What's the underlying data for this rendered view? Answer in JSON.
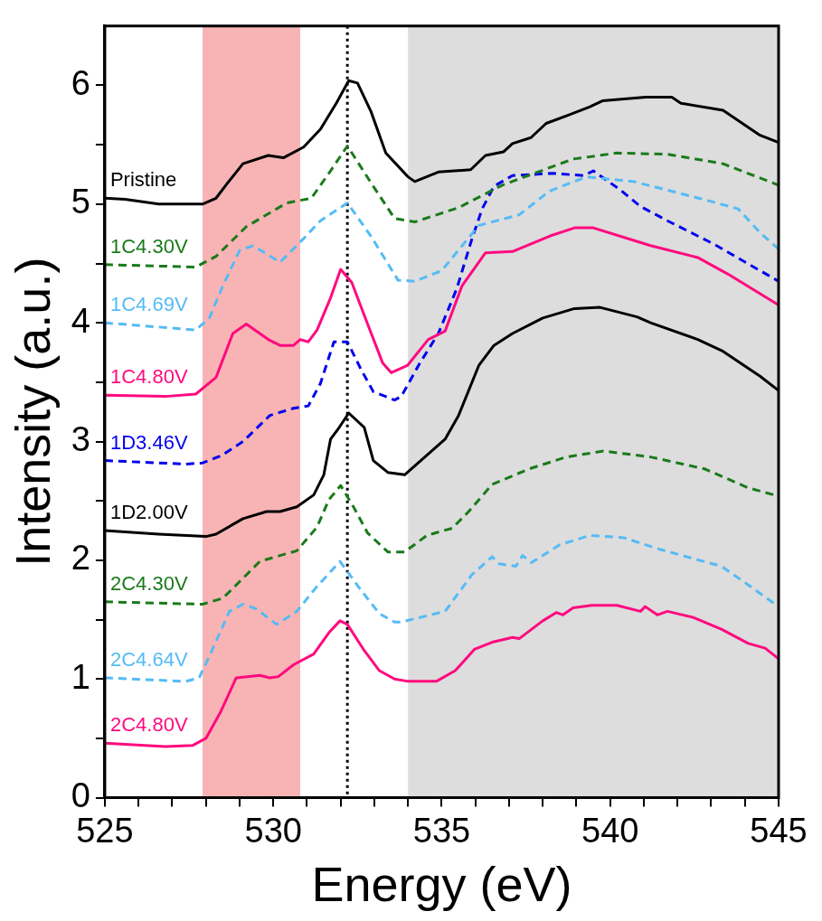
{
  "chart_data": {
    "type": "line",
    "xlabel": "Energy (eV)",
    "ylabel": "Intensity (a.u.)",
    "xlim": [
      525,
      545
    ],
    "ylim": [
      0,
      6.5
    ],
    "xticks": [
      525,
      {
        "value": 526,
        "label": null
      },
      {
        "value": 527,
        "label": null
      },
      {
        "value": 528,
        "label": null
      },
      {
        "value": 529,
        "label": null
      },
      530,
      {
        "value": 531,
        "label": null
      },
      {
        "value": 532,
        "label": null
      },
      {
        "value": 533,
        "label": null
      },
      {
        "value": 534,
        "label": null
      },
      535,
      {
        "value": 536,
        "label": null
      },
      {
        "value": 537,
        "label": null
      },
      {
        "value": 538,
        "label": null
      },
      {
        "value": 539,
        "label": null
      },
      540,
      {
        "value": 541,
        "label": null
      },
      {
        "value": 542,
        "label": null
      },
      {
        "value": 543,
        "label": null
      },
      {
        "value": 544,
        "label": null
      },
      545
    ],
    "yticks": [
      0,
      {
        "value": 0.5,
        "label": null
      },
      1,
      {
        "value": 1.5,
        "label": null
      },
      2,
      {
        "value": 2.5,
        "label": null
      },
      3,
      {
        "value": 3.5,
        "label": null
      },
      4,
      {
        "value": 4.5,
        "label": null
      },
      5,
      {
        "value": 5.5,
        "label": null
      },
      6
    ],
    "grid": false,
    "legend": false,
    "marker": "none",
    "bands": [
      {
        "axis": "x",
        "from": 527.9,
        "to": 530.8,
        "color": "#f8b4b4"
      },
      {
        "axis": "x",
        "from": 534.0,
        "to": 545,
        "color": "#dddddd"
      }
    ],
    "ref_lines": [
      {
        "axis": "x",
        "value": 532.2,
        "color": "#000000",
        "line_style": "dotted"
      }
    ],
    "series": [
      {
        "name": "Pristine",
        "color": "#000000",
        "line_style": "solid",
        "x": [
          525,
          525.6,
          526.6,
          527.9,
          528.3,
          528.65,
          529.1,
          529.85,
          530.3,
          530.9,
          531.4,
          531.87,
          532.24,
          532.5,
          532.9,
          533.34,
          534.0,
          534.2,
          534.9,
          535.86,
          536.3,
          536.83,
          537.1,
          537.65,
          538.1,
          538.76,
          539.4,
          539.77,
          541.05,
          541.83,
          542.1,
          543.35,
          544.45,
          545
        ],
        "values": [
          5.05,
          5.04,
          5.0,
          5.0,
          5.05,
          5.18,
          5.34,
          5.41,
          5.39,
          5.48,
          5.63,
          5.85,
          6.04,
          6.02,
          5.78,
          5.43,
          5.23,
          5.19,
          5.27,
          5.29,
          5.41,
          5.44,
          5.51,
          5.56,
          5.68,
          5.75,
          5.82,
          5.87,
          5.9,
          5.9,
          5.85,
          5.79,
          5.58,
          5.52
        ]
      },
      {
        "name": "1C4.30V",
        "color": "#1a7a1a",
        "line_style": "dashed",
        "x": [
          525,
          527.7,
          528.3,
          529.2,
          530.4,
          531.13,
          531.7,
          532.2,
          532.9,
          533.6,
          534.2,
          535.5,
          536.8,
          538.9,
          540.2,
          541.7,
          543.35,
          545
        ],
        "values": [
          4.49,
          4.47,
          4.56,
          4.81,
          5.01,
          5.05,
          5.28,
          5.49,
          5.18,
          4.88,
          4.85,
          4.97,
          5.16,
          5.38,
          5.43,
          5.42,
          5.34,
          5.16
        ]
      },
      {
        "name": "1C4.69V",
        "color": "#55bbf5",
        "line_style": "dashed",
        "x": [
          525,
          527.7,
          528.1,
          528.5,
          529.0,
          529.4,
          530.2,
          530.9,
          531.4,
          532.2,
          532.9,
          533.7,
          534.2,
          535.0,
          536.1,
          537.3,
          538.2,
          539.3,
          540.7,
          542.9,
          543.8,
          544.45,
          545
        ],
        "values": [
          4.0,
          3.94,
          4.04,
          4.31,
          4.61,
          4.65,
          4.51,
          4.71,
          4.86,
          5.01,
          4.73,
          4.36,
          4.35,
          4.44,
          4.82,
          4.91,
          5.11,
          5.23,
          5.19,
          5.03,
          4.96,
          4.76,
          4.62
        ]
      },
      {
        "name": "1C4.80V",
        "color": "#ff0a7f",
        "line_style": "solid",
        "x": [
          525,
          526.8,
          527.7,
          528.3,
          528.8,
          529.2,
          529.85,
          530.2,
          530.6,
          530.8,
          531.04,
          531.3,
          531.7,
          532.0,
          532.33,
          532.8,
          533.25,
          533.5,
          533.98,
          534.6,
          535.1,
          535.6,
          536.3,
          537.1,
          538.2,
          538.94,
          539.5,
          541.2,
          542.6,
          543.5,
          545
        ],
        "values": [
          3.39,
          3.38,
          3.4,
          3.54,
          3.91,
          3.99,
          3.86,
          3.81,
          3.81,
          3.86,
          3.84,
          3.94,
          4.21,
          4.45,
          4.34,
          3.99,
          3.66,
          3.58,
          3.64,
          3.86,
          3.93,
          4.31,
          4.59,
          4.6,
          4.73,
          4.8,
          4.8,
          4.65,
          4.55,
          4.41,
          4.15
        ]
      },
      {
        "name": "1D3.46V",
        "color": "#0000ee",
        "line_style": "dashed",
        "x": [
          525,
          527.4,
          527.9,
          528.45,
          529.1,
          529.9,
          530.6,
          531.04,
          531.4,
          531.8,
          532.2,
          532.6,
          532.97,
          533.6,
          533.8,
          534.35,
          534.9,
          535.45,
          535.9,
          536.2,
          536.55,
          537.1,
          538.3,
          539.2,
          539.5,
          540.3,
          540.9,
          541.7,
          543.1,
          545
        ],
        "values": [
          2.84,
          2.81,
          2.82,
          2.88,
          3.0,
          3.22,
          3.28,
          3.3,
          3.49,
          3.84,
          3.84,
          3.61,
          3.42,
          3.35,
          3.38,
          3.66,
          3.91,
          4.29,
          4.71,
          4.96,
          5.15,
          5.24,
          5.26,
          5.24,
          5.28,
          5.12,
          4.98,
          4.86,
          4.66,
          4.35
        ]
      },
      {
        "name": "1D2.00V",
        "color": "#000000",
        "line_style": "solid",
        "x": [
          525,
          526.6,
          528.0,
          528.3,
          529.1,
          529.8,
          530.2,
          530.7,
          531.2,
          531.5,
          531.7,
          531.96,
          532.24,
          532.7,
          532.97,
          533.4,
          533.9,
          534.5,
          535.1,
          535.5,
          536.1,
          536.55,
          537.1,
          538.0,
          538.94,
          539.7,
          540.8,
          541.2,
          542.6,
          543.35,
          544.45,
          545
        ],
        "values": [
          2.25,
          2.22,
          2.2,
          2.22,
          2.35,
          2.41,
          2.41,
          2.45,
          2.55,
          2.72,
          3.02,
          3.12,
          3.24,
          3.12,
          2.84,
          2.74,
          2.72,
          2.87,
          3.02,
          3.22,
          3.64,
          3.81,
          3.91,
          4.04,
          4.12,
          4.13,
          4.05,
          4.0,
          3.86,
          3.76,
          3.55,
          3.43
        ]
      },
      {
        "name": "2C4.30V",
        "color": "#1a7a1a",
        "line_style": "dashed",
        "x": [
          525,
          527.9,
          528.5,
          529.0,
          529.6,
          530.2,
          530.7,
          531.3,
          531.65,
          532.0,
          532.4,
          532.8,
          533.4,
          533.9,
          534.56,
          535.31,
          535.8,
          536.5,
          537.6,
          538.7,
          539.8,
          541.2,
          542.8,
          544.1,
          545
        ],
        "values": [
          1.65,
          1.63,
          1.68,
          1.82,
          1.99,
          2.04,
          2.08,
          2.28,
          2.51,
          2.63,
          2.44,
          2.23,
          2.07,
          2.07,
          2.21,
          2.27,
          2.41,
          2.64,
          2.77,
          2.87,
          2.92,
          2.87,
          2.77,
          2.61,
          2.54
        ]
      },
      {
        "name": "2C4.64V",
        "color": "#55bbf5",
        "line_style": "dashed",
        "x": [
          525,
          527.4,
          527.8,
          528.1,
          528.7,
          529.1,
          529.5,
          530.1,
          530.7,
          531.27,
          531.98,
          532.6,
          533.15,
          533.6,
          533.8,
          535.1,
          535.9,
          536.5,
          536.7,
          537.2,
          537.4,
          537.66,
          538.5,
          539.4,
          540.4,
          541.5,
          543.3,
          543.96,
          545
        ],
        "values": [
          1.01,
          0.98,
          1.01,
          1.19,
          1.57,
          1.63,
          1.59,
          1.46,
          1.57,
          1.77,
          1.99,
          1.75,
          1.55,
          1.48,
          1.48,
          1.57,
          1.88,
          2.03,
          1.97,
          1.95,
          2.04,
          1.98,
          2.13,
          2.21,
          2.19,
          2.09,
          1.95,
          1.82,
          1.61
        ]
      },
      {
        "name": "2C4.80V",
        "color": "#ff0a7f",
        "line_style": "solid",
        "x": [
          525,
          526.8,
          527.6,
          528.0,
          528.45,
          528.9,
          529.6,
          529.9,
          530.15,
          530.6,
          531.2,
          531.65,
          531.98,
          532.2,
          532.7,
          533.15,
          533.6,
          534.0,
          534.84,
          535.4,
          535.97,
          536.5,
          537.1,
          537.3,
          538.0,
          538.4,
          538.6,
          538.9,
          539.45,
          540.2,
          540.9,
          541.04,
          541.4,
          541.7,
          542.45,
          543.3,
          544.1,
          544.6,
          545
        ],
        "values": [
          0.46,
          0.43,
          0.44,
          0.5,
          0.73,
          1.01,
          1.03,
          1.01,
          1.02,
          1.12,
          1.21,
          1.39,
          1.49,
          1.46,
          1.24,
          1.07,
          1.0,
          0.98,
          0.98,
          1.07,
          1.25,
          1.31,
          1.35,
          1.34,
          1.49,
          1.56,
          1.54,
          1.6,
          1.62,
          1.62,
          1.57,
          1.61,
          1.54,
          1.57,
          1.52,
          1.42,
          1.3,
          1.26,
          1.17
        ]
      }
    ]
  }
}
